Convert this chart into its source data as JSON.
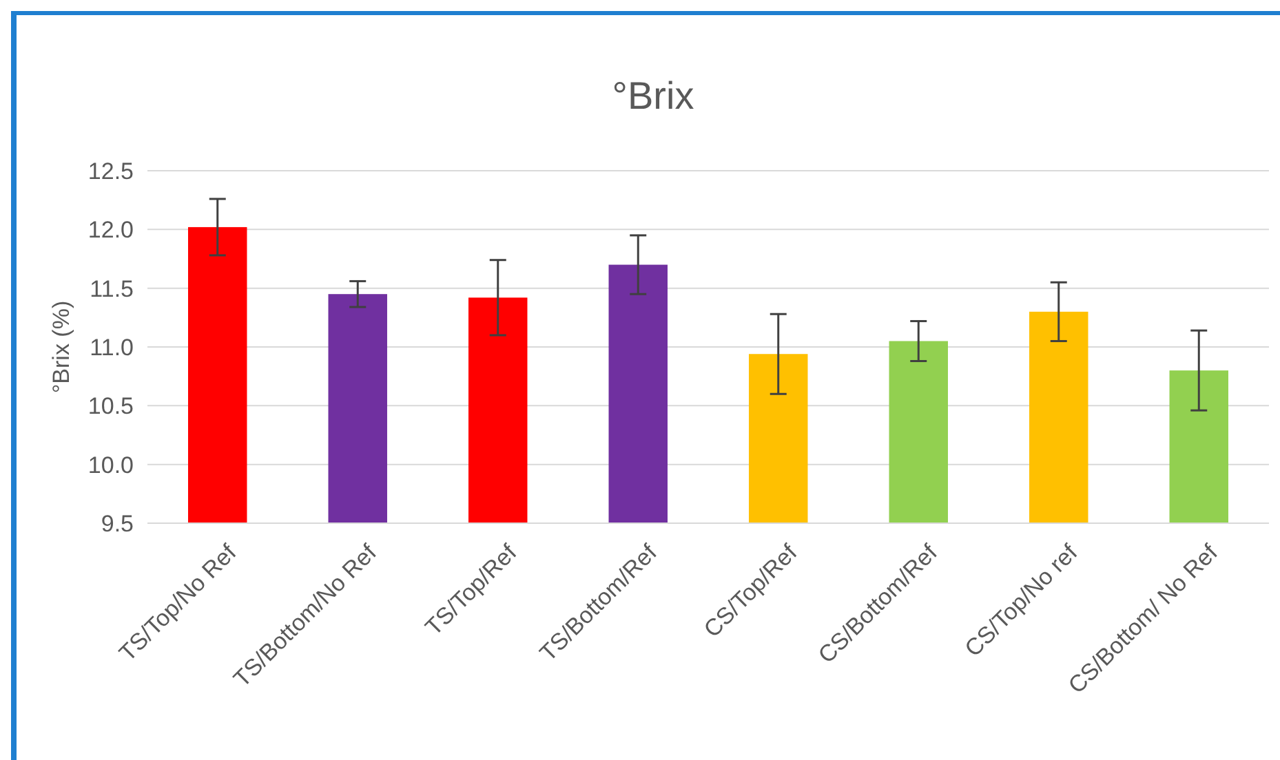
{
  "chart_data": {
    "type": "bar",
    "title": "°Brix",
    "ylabel": "°Brix (%)",
    "categories": [
      "TS/Top/No Ref",
      "TS/Bottom/No Ref",
      "TS/Top/Ref",
      "TS/Bottom/Ref",
      "CS/Top/Ref",
      "CS/Bottom/Ref",
      "CS/Top/No ref",
      "CS/Bottom/ No Ref"
    ],
    "values": [
      12.02,
      11.45,
      11.42,
      11.7,
      10.94,
      11.05,
      11.3,
      10.8
    ],
    "errors": [
      0.24,
      0.11,
      0.32,
      0.25,
      0.34,
      0.17,
      0.25,
      0.34
    ],
    "colors": [
      "#ff0000",
      "#7030a0",
      "#ff0000",
      "#7030a0",
      "#ffc000",
      "#92d050",
      "#ffc000",
      "#92d050"
    ],
    "ylim": [
      9.5,
      12.5
    ],
    "yticks": [
      {
        "value": 9.5,
        "label": "9.5"
      },
      {
        "value": 10,
        "label": "10.0"
      },
      {
        "value": 10.5,
        "label": "10.5"
      },
      {
        "value": 11,
        "label": "11.0"
      },
      {
        "value": 11.5,
        "label": "11.5"
      },
      {
        "value": 12,
        "label": "12.0"
      },
      {
        "value": 12.5,
        "label": "12.5"
      }
    ],
    "grid": true
  }
}
